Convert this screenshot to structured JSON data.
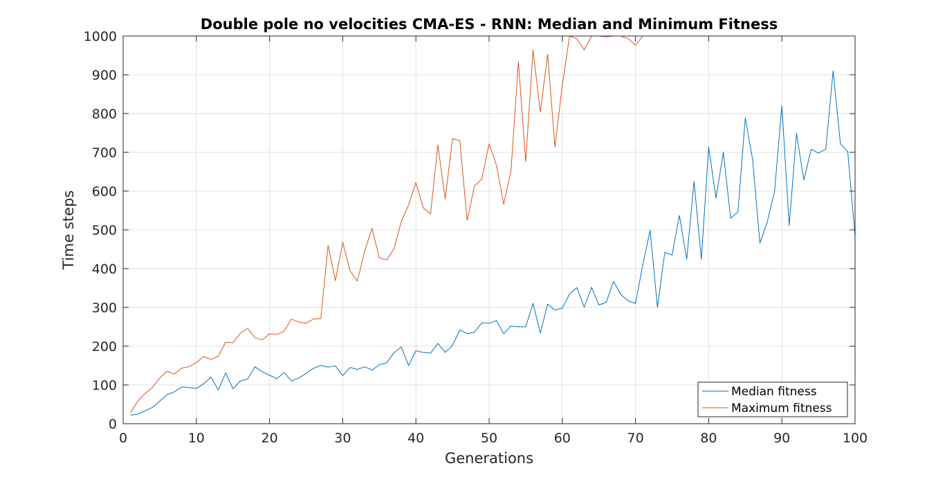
{
  "chart_data": {
    "type": "line",
    "title": "Double pole no velocities CMA-ES - RNN: Median and Minimum Fitness",
    "xlabel": "Generations",
    "ylabel": "Time steps",
    "xlim": [
      0,
      100
    ],
    "ylim": [
      0,
      1000
    ],
    "xticks": [
      "0",
      "10",
      "20",
      "30",
      "40",
      "50",
      "60",
      "70",
      "80",
      "90",
      "100"
    ],
    "yticks": [
      "0",
      "100",
      "200",
      "300",
      "400",
      "500",
      "600",
      "700",
      "800",
      "900",
      "1000"
    ],
    "grid": true,
    "legend_position": "bottom-right",
    "x": [
      1,
      2,
      3,
      4,
      5,
      6,
      7,
      8,
      9,
      10,
      11,
      12,
      13,
      14,
      15,
      16,
      17,
      18,
      19,
      20,
      21,
      22,
      23,
      24,
      25,
      26,
      27,
      28,
      29,
      30,
      31,
      32,
      33,
      34,
      35,
      36,
      37,
      38,
      39,
      40,
      41,
      42,
      43,
      44,
      45,
      46,
      47,
      48,
      49,
      50,
      51,
      52,
      53,
      54,
      55,
      56,
      57,
      58,
      59,
      60,
      61,
      62,
      63,
      64,
      65,
      66,
      67,
      68,
      69,
      70,
      71,
      72,
      73,
      74,
      75,
      76,
      77,
      78,
      79,
      80,
      81,
      82,
      83,
      84,
      85,
      86,
      87,
      88,
      89,
      90,
      91,
      92,
      93,
      94,
      95,
      96,
      97,
      98,
      99,
      100
    ],
    "series": [
      {
        "name": "Median fitness",
        "color": "#0072BD",
        "values": [
          22,
          25,
          33,
          42,
          58,
          75,
          82,
          95,
          93,
          91,
          103,
          120,
          87,
          131,
          90,
          110,
          115,
          147,
          134,
          125,
          116,
          132,
          110,
          118,
          130,
          143,
          150,
          146,
          149,
          124,
          145,
          140,
          147,
          138,
          152,
          157,
          183,
          198,
          150,
          188,
          184,
          182,
          207,
          184,
          202,
          242,
          232,
          236,
          260,
          259,
          266,
          232,
          252,
          250,
          250,
          310,
          234,
          308,
          293,
          298,
          335,
          351,
          300,
          352,
          306,
          313,
          367,
          333,
          317,
          310,
          410,
          499,
          300,
          442,
          435,
          537,
          424,
          625,
          424,
          714,
          582,
          700,
          530,
          546,
          789,
          681,
          466,
          520,
          599,
          820,
          511,
          749,
          628,
          708,
          698,
          708,
          910,
          722,
          702,
          483
        ]
      },
      {
        "name": "Maximum fitness",
        "color": "#D95319",
        "values": [
          28,
          58,
          78,
          93,
          118,
          135,
          128,
          143,
          147,
          158,
          173,
          166,
          174,
          210,
          209,
          233,
          246,
          222,
          216,
          232,
          230,
          239,
          270,
          262,
          259,
          270,
          271,
          460,
          369,
          468,
          394,
          368,
          445,
          504,
          428,
          422,
          451,
          521,
          564,
          622,
          557,
          541,
          719,
          580,
          735,
          730,
          524,
          613,
          631,
          722,
          667,
          566,
          654,
          934,
          676,
          964,
          804,
          953,
          713,
          873,
          1000,
          993,
          964,
          1000,
          1000,
          998,
          1000,
          1000,
          993,
          976,
          1000,
          1000,
          1000,
          1000,
          1000,
          1000,
          1000,
          1000,
          1000,
          1000,
          1000,
          1000,
          1000,
          1000,
          1000,
          1000,
          1000,
          1000,
          1000,
          1000,
          1000,
          1000,
          1000,
          1000,
          1000,
          1000,
          1000,
          1000,
          1000,
          1000
        ]
      }
    ]
  }
}
